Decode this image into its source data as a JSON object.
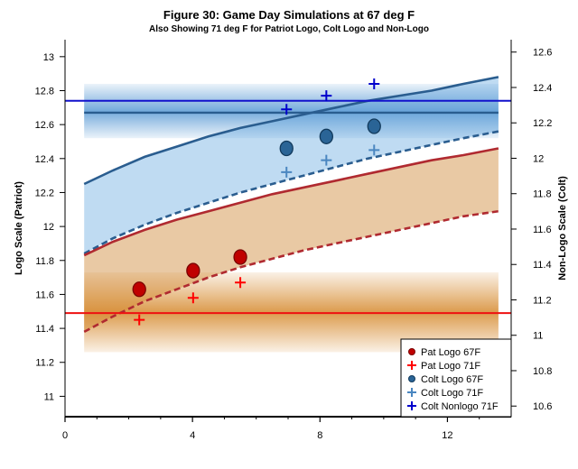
{
  "chart_data": {
    "type": "scatter",
    "title": "Figure 30: Game Day Simulations at 67 deg F",
    "subtitle": "Also Showing 71 deg F for Patriot Logo, Colt Logo and Non-Logo",
    "xlabel": "",
    "ylabel_left": "Logo Scale (Patriot)",
    "ylabel_right": "Non-Logo Scale (Colt)",
    "xlim": [
      0,
      14
    ],
    "ylim_left": [
      10.88,
      13.1
    ],
    "ylim_right": [
      10.54,
      12.67
    ],
    "x_ticks": [
      0,
      4,
      8,
      12
    ],
    "x_tick_labels": [
      "0",
      "4",
      "8",
      "12"
    ],
    "y_left_ticks": [
      11,
      11.2,
      11.4,
      11.6,
      11.8,
      12,
      12.2,
      12.4,
      12.6,
      12.8,
      13
    ],
    "y_left_tick_labels": [
      "11",
      "11.2",
      "11.4",
      "11.6",
      "11.8",
      "12",
      "12.2",
      "12.4",
      "12.6",
      "12.8",
      "13"
    ],
    "y_right_ticks": [
      10.6,
      10.8,
      11,
      11.2,
      11.4,
      11.6,
      11.8,
      12,
      12.2,
      12.4,
      12.6
    ],
    "y_right_tick_labels": [
      "10.6",
      "10.8",
      "11",
      "11.2",
      "11.4",
      "11.6",
      "11.8",
      "12",
      "12.2",
      "12.4",
      "12.6"
    ],
    "grid": false,
    "legend_position": "bottom-right",
    "colors": {
      "pat": "#c00000",
      "pat_dark": "#7a0000",
      "pat_71": "#ff0000",
      "pat_line": "#b02a30",
      "colt": "#2a6496",
      "colt_dark": "#123a5c",
      "colt_71": "#4a86c0",
      "colt_line": "#2a5d8f",
      "nonlogo": "#0000cc",
      "pat_hline": "#ee1111",
      "colt_hline": "#1111cc",
      "pat_band": "#d68a2e",
      "colt_band": "#5b9bd5",
      "pat_fan": "#e9c9a4",
      "colt_fan": "#bfdbf2"
    },
    "series": [
      {
        "name": "Pat Logo 67F",
        "marker": "filled-circle",
        "axis": "left",
        "x": [
          2.33,
          4.02,
          5.5
        ],
        "y": [
          11.63,
          11.74,
          11.82
        ]
      },
      {
        "name": "Pat Logo 71F",
        "marker": "plus",
        "axis": "left",
        "x": [
          2.33,
          4.02,
          5.5
        ],
        "y": [
          11.45,
          11.58,
          11.67
        ]
      },
      {
        "name": "Colt Logo 67F",
        "marker": "filled-circle",
        "axis": "left",
        "x": [
          6.95,
          8.2,
          9.7
        ],
        "y": [
          12.46,
          12.53,
          12.59
        ]
      },
      {
        "name": "Colt Logo 71F",
        "marker": "plus",
        "axis": "left",
        "x": [
          6.95,
          8.2,
          9.7
        ],
        "y": [
          12.32,
          12.39,
          12.45
        ]
      },
      {
        "name": "Colt Nonlogo 71F",
        "marker": "plus",
        "axis": "left",
        "x": [
          6.95,
          8.2,
          9.7
        ],
        "y": [
          12.69,
          12.77,
          12.84
        ]
      }
    ],
    "curves": [
      {
        "id": "colt-upper-solid",
        "style": "solid",
        "color": "colt_line",
        "x": [
          0.6,
          1.5,
          2.5,
          3.5,
          4.5,
          5.5,
          6.5,
          7.5,
          8.5,
          9.5,
          10.5,
          11.5,
          12.5,
          13.6
        ],
        "y": [
          12.25,
          12.33,
          12.41,
          12.47,
          12.53,
          12.58,
          12.62,
          12.66,
          12.7,
          12.74,
          12.77,
          12.8,
          12.84,
          12.88
        ]
      },
      {
        "id": "colt-lower-dashed",
        "style": "dashed",
        "color": "colt_line",
        "x": [
          0.6,
          1.5,
          2.5,
          3.5,
          4.5,
          5.5,
          6.5,
          7.5,
          8.5,
          9.5,
          10.5,
          11.5,
          12.5,
          13.6
        ],
        "y": [
          11.84,
          11.93,
          12.01,
          12.08,
          12.14,
          12.2,
          12.25,
          12.3,
          12.35,
          12.4,
          12.44,
          12.48,
          12.52,
          12.56
        ]
      },
      {
        "id": "pat-upper-solid",
        "style": "solid",
        "color": "pat_line",
        "x": [
          0.6,
          1.5,
          2.5,
          3.5,
          4.5,
          5.5,
          6.5,
          7.5,
          8.5,
          9.5,
          10.5,
          11.5,
          12.5,
          13.6
        ],
        "y": [
          11.83,
          11.91,
          11.98,
          12.04,
          12.09,
          12.14,
          12.19,
          12.23,
          12.27,
          12.31,
          12.35,
          12.39,
          12.42,
          12.46
        ]
      },
      {
        "id": "pat-lower-dashed",
        "style": "dashed",
        "color": "pat_line",
        "x": [
          0.6,
          1.5,
          2.5,
          3.5,
          4.5,
          5.5,
          6.5,
          7.5,
          8.5,
          9.5,
          10.5,
          11.5,
          12.5,
          13.6
        ],
        "y": [
          11.38,
          11.47,
          11.56,
          11.63,
          11.7,
          11.76,
          11.81,
          11.86,
          11.9,
          11.94,
          11.98,
          12.02,
          12.06,
          12.09
        ]
      }
    ],
    "reference_lines": [
      {
        "id": "pat-hline",
        "y": 11.49,
        "color": "pat_hline"
      },
      {
        "id": "colt-hline",
        "y": 12.74,
        "color": "colt_hline"
      },
      {
        "id": "colt-band-mean",
        "y": 12.67,
        "color": "colt_line"
      }
    ],
    "bands": [
      {
        "id": "pat-band",
        "x": [
          0.6,
          13.6
        ],
        "y": [
          11.26,
          11.73
        ],
        "center": 11.49,
        "color": "pat_band"
      },
      {
        "id": "colt-band",
        "x": [
          0.6,
          13.6
        ],
        "y": [
          12.52,
          12.84
        ],
        "center": 12.67,
        "color": "colt_band"
      }
    ]
  }
}
